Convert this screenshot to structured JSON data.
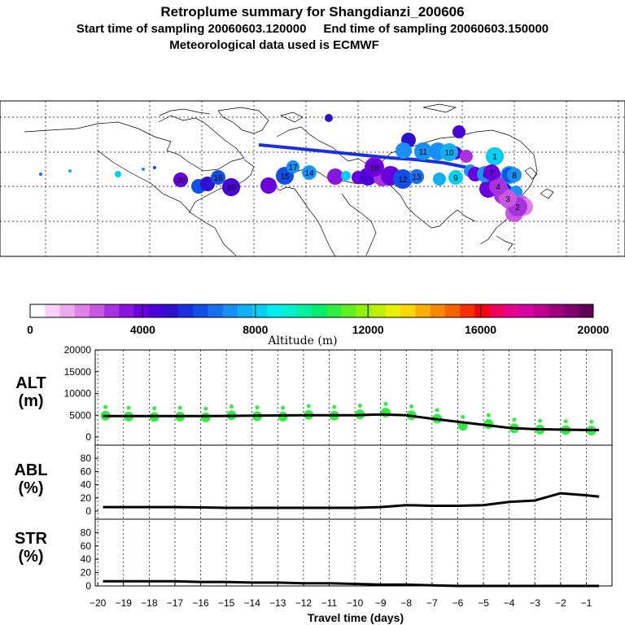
{
  "header": {
    "title": "Retroplume summary for Shangdianzi_200606",
    "sampling": "Start time of sampling 20060603.120000     End time of sampling 20060603.150000",
    "met": "Meteorological data used is ECMWF"
  },
  "colorbar": {
    "label": "Altitude (m)",
    "ticks": [
      "0",
      "4000",
      "8000",
      "12000",
      "16000",
      "20000"
    ],
    "colors": [
      "#ffffff",
      "#f7d3f7",
      "#eeaaee",
      "#e080e8",
      "#c958e0",
      "#a832e0",
      "#8a14e0",
      "#6a00dc",
      "#4c00d8",
      "#3010d0",
      "#1a30e0",
      "#1050e8",
      "#1870f0",
      "#1890f4",
      "#10b0f4",
      "#00d0f4",
      "#00ecf0",
      "#00f0d0",
      "#00f0a0",
      "#00ee70",
      "#30ee40",
      "#60f020",
      "#90f010",
      "#c0f000",
      "#e8f000",
      "#f8d800",
      "#f8b000",
      "#f88800",
      "#f86000",
      "#f83000",
      "#f80010",
      "#f0005a",
      "#e80090",
      "#d800a0",
      "#c00090",
      "#a00080",
      "#800070",
      "#600058"
    ]
  },
  "map": {
    "labels": [
      {
        "t": "1",
        "c": "#00d0f4",
        "r": 10
      },
      {
        "t": "2",
        "c": "#a832e0",
        "r": 12
      },
      {
        "t": "3",
        "c": "#c958e0",
        "r": 11
      },
      {
        "t": "4",
        "c": "#a832e0",
        "r": 11
      },
      {
        "t": "5",
        "c": "#1050e8",
        "r": 9
      },
      {
        "t": "6",
        "c": "#1890f4",
        "r": 10
      },
      {
        "t": "7",
        "c": "#6a00dc",
        "r": 10
      },
      {
        "t": "8",
        "c": "#1890f4",
        "r": 9
      },
      {
        "t": "9",
        "c": "#00d0f4",
        "r": 9
      },
      {
        "t": "10",
        "c": "#10b0f4",
        "r": 11
      },
      {
        "t": "11",
        "c": "#1890f4",
        "r": 11
      },
      {
        "t": "12",
        "c": "#1050e8",
        "r": 10
      },
      {
        "t": "13",
        "c": "#1870f0",
        "r": 9
      },
      {
        "t": "14",
        "c": "#1890f4",
        "r": 8
      },
      {
        "t": "15",
        "c": "#1050e8",
        "r": 11
      },
      {
        "t": "16",
        "c": "#1050e8",
        "r": 9
      },
      {
        "t": "17",
        "c": "#1890f4",
        "r": 8
      },
      {
        "t": "18",
        "c": "#6a00dc",
        "r": 11
      },
      {
        "t": "19",
        "c": "#4c00d8",
        "r": 11
      },
      {
        "t": "20",
        "c": "#6a00dc",
        "r": 9
      }
    ]
  },
  "panels": {
    "alt": {
      "label": "ALT",
      "unit": "(m)",
      "ticks": [
        "0",
        "5000",
        "10000",
        "15000",
        "20000"
      ]
    },
    "abl": {
      "label": "ABL",
      "unit": "(%)",
      "ticks": [
        "0",
        "20",
        "40",
        "60",
        "80"
      ]
    },
    "str": {
      "label": "STR",
      "unit": "(%)",
      "ticks": [
        "0",
        "20",
        "40",
        "60",
        "80"
      ]
    }
  },
  "chart_data": [
    {
      "type": "line",
      "title": "Retroplume summary for Shangdianzi_200606",
      "name": "ALT",
      "xlabel": "Travel time (days)",
      "ylabel": "ALT (m)",
      "xlim": [
        -20.1,
        0
      ],
      "ylim": [
        0,
        20000
      ],
      "x": [
        -19.8,
        -19,
        -18,
        -17,
        -16,
        -15,
        -14,
        -13,
        -12,
        -11,
        -10,
        -9,
        -8,
        -7,
        -6,
        -5,
        -4,
        -3,
        -2,
        -1,
        -0.5
      ],
      "values": [
        4800,
        4800,
        4800,
        4800,
        4800,
        4850,
        4900,
        4950,
        5000,
        5000,
        5000,
        5200,
        5000,
        4200,
        3500,
        2800,
        2100,
        1800,
        1700,
        1600,
        1600
      ],
      "scatter_x": [
        -19.7,
        -18.8,
        -17.8,
        -16.8,
        -15.8,
        -14.8,
        -13.8,
        -12.8,
        -11.8,
        -10.8,
        -9.8,
        -8.8,
        -7.8,
        -6.8,
        -5.8,
        -4.8,
        -3.8,
        -2.8,
        -1.8,
        -0.8
      ],
      "scatter_y": [
        4900,
        4700,
        4600,
        4700,
        4500,
        5000,
        4800,
        4700,
        5100,
        4900,
        5200,
        5600,
        5000,
        4200,
        2600,
        3000,
        2000,
        1700,
        1600,
        1500
      ],
      "xtick_labels": [
        "−20",
        "−19",
        "−18",
        "−17",
        "−16",
        "−15",
        "−14",
        "−13",
        "−12",
        "−11",
        "−10",
        "−9",
        "−8",
        "−7",
        "−6",
        "−5",
        "−4",
        "−3",
        "−2",
        "−1"
      ]
    },
    {
      "type": "line",
      "name": "ABL",
      "ylabel": "ABL (%)",
      "ylim": [
        0,
        100
      ],
      "x": [
        -19.8,
        -19,
        -18,
        -17,
        -16,
        -15,
        -14,
        -13,
        -12,
        -11,
        -10,
        -9,
        -8,
        -7,
        -6,
        -5,
        -4,
        -3,
        -2,
        -1,
        -0.5
      ],
      "values": [
        6,
        6,
        6,
        6,
        5.5,
        5,
        5,
        5,
        5,
        5,
        5,
        6,
        9,
        8,
        8,
        9,
        14,
        16,
        27,
        24,
        22
      ]
    },
    {
      "type": "line",
      "name": "STR",
      "ylabel": "STR (%)",
      "ylim": [
        0,
        100
      ],
      "x": [
        -19.8,
        -19,
        -18,
        -17,
        -16,
        -15,
        -14,
        -13,
        -12,
        -11,
        -10,
        -9,
        -8,
        -7,
        -6,
        -5,
        -4,
        -3,
        -2,
        -1,
        -0.5
      ],
      "values": [
        7,
        7,
        7,
        7,
        6,
        6,
        5,
        5,
        4,
        4,
        3,
        2,
        2,
        1,
        0,
        0,
        0,
        0,
        0,
        0,
        0
      ]
    }
  ]
}
